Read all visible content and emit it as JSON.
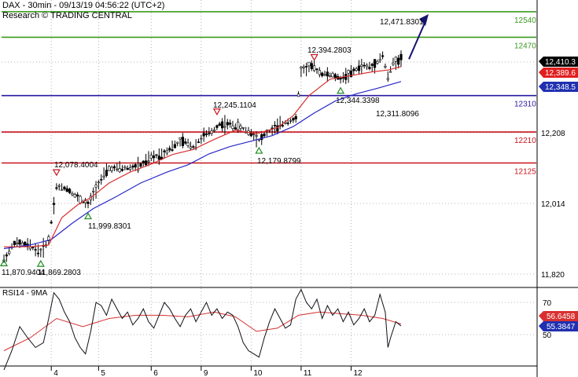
{
  "header": {
    "title": "DAX - 30min - 09/13/19 04:56:22 (UTC+2)",
    "subtitle": "Research © TRADING CENTRAL"
  },
  "rsi_title": "RSI14 - 9MA",
  "colors": {
    "resistance": "#3a9a1e",
    "pivot": "#2a1aa0",
    "support": "#c8141e",
    "ma_fast": "#d83030",
    "ma_slow": "#2828c8",
    "rsi_line": "#101018",
    "rsi_ma": "#d83030",
    "arrow": "#141470",
    "price_tag": "#000000",
    "ma_fast_tag": "#e02020",
    "ma_slow_tag": "#2030b0",
    "grid": "#b4b4b4"
  },
  "chart_data": [
    {
      "type": "line",
      "title": "DAX - 30min - 09/13/19 04:56:22 (UTC+2)",
      "subtitle": "Research © TRADING CENTRAL",
      "x_ticks": [
        "4",
        "5",
        "6",
        "9",
        "10",
        "11",
        "12"
      ],
      "y_ticks": [
        11820,
        12014,
        12208
      ],
      "ylim": [
        11770,
        12575
      ],
      "levels": [
        {
          "label": "12540",
          "value": 12540,
          "role": "resistance"
        },
        {
          "label": "12470",
          "value": 12470,
          "role": "resistance"
        },
        {
          "label": "12310",
          "value": 12310,
          "role": "pivot"
        },
        {
          "label": "12210",
          "value": 12210,
          "role": "support"
        },
        {
          "label": "12125",
          "value": 12125,
          "role": "support"
        }
      ],
      "annotations": [
        {
          "text": "12,471.8301",
          "value": 12471.8301,
          "bar": 146,
          "marker": "none"
        },
        {
          "text": "12,394.2803",
          "value": 12394.2803,
          "bar": 118,
          "marker": "high"
        },
        {
          "text": "12,344.3398",
          "value": 12344.3398,
          "bar": 128,
          "marker": "low"
        },
        {
          "text": "12,311.8096",
          "value": 12311.8096,
          "bar": 144,
          "marker": "none"
        },
        {
          "text": "12,245.1104",
          "value": 12245.1104,
          "bar": 81,
          "marker": "high"
        },
        {
          "text": "12,179.8799",
          "value": 12179.8799,
          "bar": 97,
          "marker": "low"
        },
        {
          "text": "12,078.4004",
          "value": 12078.4004,
          "bar": 20,
          "marker": "high"
        },
        {
          "text": "11,999.8301",
          "value": 11999.8301,
          "bar": 32,
          "marker": "low"
        },
        {
          "text": "11,870.9404",
          "value": 11870.9404,
          "bar": 0,
          "marker": "low"
        },
        {
          "text": "11,869.2803",
          "value": 11869.2803,
          "bar": 14,
          "marker": "low"
        }
      ],
      "price_tags": [
        {
          "text": "12,410.3",
          "value": 12410.3,
          "role": "price"
        },
        {
          "text": "12,389.6",
          "value": 12389.6,
          "role": "ma_fast"
        },
        {
          "text": "12,348.5",
          "value": 12348.5,
          "role": "ma_slow"
        }
      ],
      "projection": {
        "from_value": 12410,
        "to_value": 12540
      },
      "price_path": [
        [
          0,
          11860
        ],
        [
          4,
          11905
        ],
        [
          9,
          11900
        ],
        [
          14,
          11880
        ],
        [
          17,
          11915
        ],
        [
          20,
          12060
        ],
        [
          24,
          12055
        ],
        [
          28,
          12030
        ],
        [
          32,
          12010
        ],
        [
          36,
          12070
        ],
        [
          40,
          12110
        ],
        [
          44,
          12110
        ],
        [
          48,
          12112
        ],
        [
          52,
          12118
        ],
        [
          56,
          12140
        ],
        [
          60,
          12148
        ],
        [
          64,
          12170
        ],
        [
          68,
          12185
        ],
        [
          72,
          12170
        ],
        [
          76,
          12200
        ],
        [
          79,
          12210
        ],
        [
          82,
          12232
        ],
        [
          86,
          12230
        ],
        [
          90,
          12222
        ],
        [
          94,
          12208
        ],
        [
          97,
          12188
        ],
        [
          100,
          12208
        ],
        [
          104,
          12225
        ],
        [
          108,
          12240
        ],
        [
          111,
          12245
        ],
        [
          113,
          12380
        ],
        [
          117,
          12390
        ],
        [
          121,
          12370
        ],
        [
          125,
          12365
        ],
        [
          128,
          12356
        ],
        [
          132,
          12372
        ],
        [
          136,
          12392
        ],
        [
          140,
          12388
        ],
        [
          144,
          12420
        ],
        [
          146,
          12360
        ],
        [
          148,
          12400
        ],
        [
          151,
          12412
        ]
      ],
      "ma_fast_path": [
        [
          0,
          11895
        ],
        [
          10,
          11895
        ],
        [
          17,
          11900
        ],
        [
          22,
          11975
        ],
        [
          28,
          12010
        ],
        [
          33,
          12030
        ],
        [
          40,
          12070
        ],
        [
          48,
          12100
        ],
        [
          56,
          12122
        ],
        [
          64,
          12148
        ],
        [
          72,
          12162
        ],
        [
          80,
          12190
        ],
        [
          88,
          12215
        ],
        [
          96,
          12205
        ],
        [
          104,
          12222
        ],
        [
          110,
          12255
        ],
        [
          116,
          12310
        ],
        [
          124,
          12355
        ],
        [
          132,
          12365
        ],
        [
          140,
          12375
        ],
        [
          146,
          12380
        ],
        [
          151,
          12389.6
        ]
      ],
      "ma_slow_path": [
        [
          0,
          11890
        ],
        [
          10,
          11900
        ],
        [
          18,
          11915
        ],
        [
          26,
          11960
        ],
        [
          34,
          12000
        ],
        [
          42,
          12030
        ],
        [
          52,
          12070
        ],
        [
          62,
          12100
        ],
        [
          70,
          12120
        ],
        [
          78,
          12150
        ],
        [
          86,
          12170
        ],
        [
          94,
          12185
        ],
        [
          102,
          12200
        ],
        [
          110,
          12225
        ],
        [
          118,
          12262
        ],
        [
          126,
          12295
        ],
        [
          134,
          12315
        ],
        [
          142,
          12330
        ],
        [
          151,
          12348.5
        ]
      ],
      "bars_total": 152,
      "x_tick_bars": [
        18,
        36,
        56,
        75,
        94,
        113,
        132
      ]
    },
    {
      "type": "line",
      "title": "RSI14 - 9MA",
      "y_ticks": [
        50,
        70
      ],
      "ylim": [
        22,
        82
      ],
      "price_tags": [
        {
          "text": "56.6458",
          "value": 56.6458,
          "role": "rsi_ma"
        },
        {
          "text": "55.3847",
          "value": 55.3847,
          "role": "rsi"
        }
      ],
      "rsi_path": [
        [
          0,
          28
        ],
        [
          3,
          40
        ],
        [
          6,
          55
        ],
        [
          9,
          48
        ],
        [
          12,
          42
        ],
        [
          15,
          45
        ],
        [
          17,
          60
        ],
        [
          19,
          76
        ],
        [
          21,
          72
        ],
        [
          23,
          64
        ],
        [
          25,
          58
        ],
        [
          27,
          48
        ],
        [
          29,
          42
        ],
        [
          31,
          38
        ],
        [
          33,
          52
        ],
        [
          35,
          70
        ],
        [
          37,
          68
        ],
        [
          39,
          62
        ],
        [
          41,
          72
        ],
        [
          43,
          66
        ],
        [
          45,
          60
        ],
        [
          47,
          64
        ],
        [
          49,
          56
        ],
        [
          51,
          60
        ],
        [
          53,
          66
        ],
        [
          55,
          58
        ],
        [
          57,
          54
        ],
        [
          59,
          62
        ],
        [
          61,
          70
        ],
        [
          63,
          66
        ],
        [
          65,
          60
        ],
        [
          67,
          55
        ],
        [
          69,
          62
        ],
        [
          71,
          66
        ],
        [
          73,
          58
        ],
        [
          75,
          64
        ],
        [
          77,
          70
        ],
        [
          79,
          62
        ],
        [
          81,
          66
        ],
        [
          83,
          60
        ],
        [
          85,
          64
        ],
        [
          87,
          62
        ],
        [
          89,
          55
        ],
        [
          91,
          45
        ],
        [
          93,
          40
        ],
        [
          95,
          38
        ],
        [
          97,
          36
        ],
        [
          99,
          48
        ],
        [
          101,
          58
        ],
        [
          103,
          66
        ],
        [
          105,
          60
        ],
        [
          107,
          54
        ],
        [
          109,
          56
        ],
        [
          111,
          72
        ],
        [
          113,
          78
        ],
        [
          115,
          70
        ],
        [
          117,
          66
        ],
        [
          119,
          72
        ],
        [
          121,
          60
        ],
        [
          123,
          68
        ],
        [
          125,
          62
        ],
        [
          127,
          66
        ],
        [
          129,
          58
        ],
        [
          131,
          64
        ],
        [
          133,
          56
        ],
        [
          135,
          60
        ],
        [
          137,
          66
        ],
        [
          139,
          58
        ],
        [
          141,
          62
        ],
        [
          143,
          75
        ],
        [
          145,
          64
        ],
        [
          146,
          42
        ],
        [
          147,
          48
        ],
        [
          149,
          58
        ],
        [
          151,
          55.3847
        ]
      ],
      "rsi_ma_path": [
        [
          0,
          40
        ],
        [
          10,
          48
        ],
        [
          20,
          60
        ],
        [
          30,
          55
        ],
        [
          40,
          60
        ],
        [
          50,
          62
        ],
        [
          60,
          62
        ],
        [
          70,
          61
        ],
        [
          80,
          64
        ],
        [
          88,
          61
        ],
        [
          96,
          52
        ],
        [
          104,
          54
        ],
        [
          112,
          62
        ],
        [
          120,
          64
        ],
        [
          128,
          63
        ],
        [
          136,
          62
        ],
        [
          144,
          60
        ],
        [
          151,
          56.6458
        ]
      ]
    }
  ]
}
